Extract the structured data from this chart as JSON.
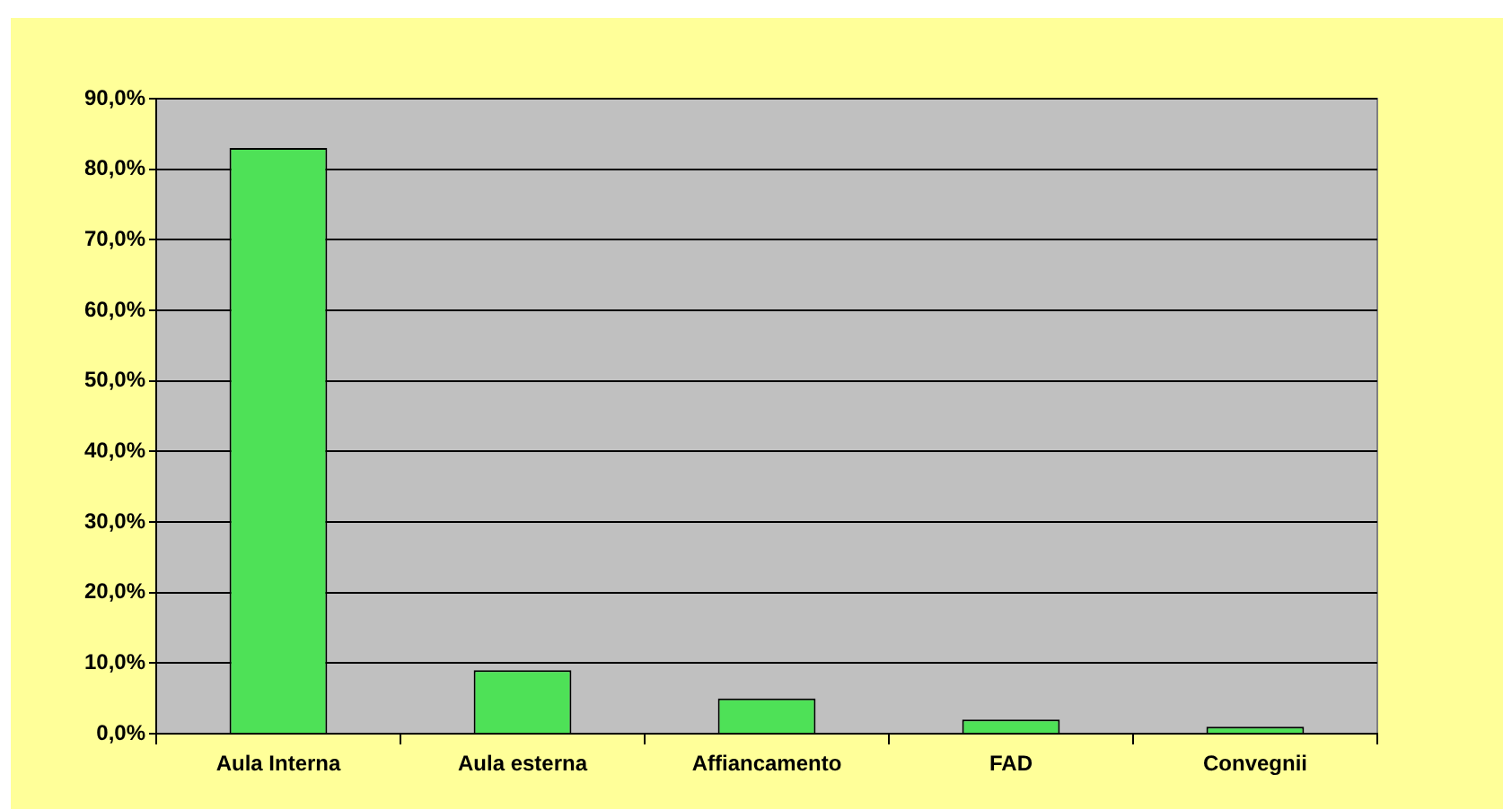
{
  "chart_data": {
    "type": "bar",
    "categories": [
      "Aula Interna",
      "Aula esterna",
      "Affiancamento",
      "FAD",
      "Convegnii"
    ],
    "values": [
      83,
      9,
      5,
      2,
      1
    ],
    "color": "#4ee157",
    "ylim": [
      0,
      90
    ],
    "yticks": [
      {
        "value": 0,
        "label": "0,0%"
      },
      {
        "value": 10,
        "label": "10,0%"
      },
      {
        "value": 20,
        "label": "20,0%"
      },
      {
        "value": 30,
        "label": "30,0%"
      },
      {
        "value": 40,
        "label": "40,0%"
      },
      {
        "value": 50,
        "label": "50,0%"
      },
      {
        "value": 60,
        "label": "60,0%"
      },
      {
        "value": 70,
        "label": "70,0%"
      },
      {
        "value": 80,
        "label": "80,0%"
      },
      {
        "value": 90,
        "label": "90,0%"
      }
    ],
    "grid": "y"
  }
}
